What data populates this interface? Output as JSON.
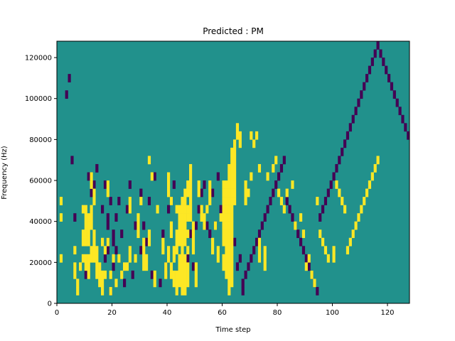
{
  "chart_data": {
    "type": "heatmap",
    "title": "Predicted : PM",
    "xlabel": "Time step",
    "ylabel": "Frequency (Hz)",
    "xlim": [
      0,
      128
    ],
    "ylim": [
      0,
      128000
    ],
    "x_ticks": [
      0,
      20,
      40,
      60,
      80,
      100,
      120
    ],
    "y_ticks": [
      0,
      20000,
      40000,
      60000,
      80000,
      100000,
      120000
    ],
    "x_tick_labels": [
      "0",
      "20",
      "40",
      "60",
      "80",
      "100",
      "120"
    ],
    "y_tick_labels": [
      "0",
      "20000",
      "40000",
      "60000",
      "80000",
      "100000",
      "120000"
    ],
    "grid": false,
    "legend": "none",
    "n_time_steps": 128,
    "n_freq_bins": 32,
    "colormap": {
      "neutral": "#21918c",
      "positive": "#fde725",
      "negative": "#440154"
    },
    "values_legend": {
      "neutral": 0,
      "positive": 1,
      "negative": -1
    },
    "high_cells": [
      [
        1,
        12
      ],
      [
        1,
        10
      ],
      [
        1,
        5
      ],
      [
        6,
        6
      ],
      [
        6,
        4
      ],
      [
        6,
        3
      ],
      [
        7,
        2
      ],
      [
        7,
        1
      ],
      [
        8,
        4
      ],
      [
        9,
        5
      ],
      [
        9,
        7
      ],
      [
        9,
        8
      ],
      [
        9,
        11
      ],
      [
        10,
        4
      ],
      [
        10,
        5
      ],
      [
        10,
        7
      ],
      [
        10,
        8
      ],
      [
        10,
        9
      ],
      [
        10,
        10
      ],
      [
        10,
        11
      ],
      [
        11,
        3
      ],
      [
        11,
        4
      ],
      [
        11,
        5
      ],
      [
        11,
        7
      ],
      [
        11,
        8
      ],
      [
        11,
        9
      ],
      [
        11,
        10
      ],
      [
        12,
        5
      ],
      [
        12,
        6
      ],
      [
        12,
        9
      ],
      [
        12,
        10
      ],
      [
        12,
        11
      ],
      [
        12,
        14
      ],
      [
        12,
        15
      ],
      [
        13,
        5
      ],
      [
        13,
        6
      ],
      [
        13,
        7
      ],
      [
        13,
        8
      ],
      [
        13,
        12
      ],
      [
        13,
        13
      ],
      [
        14,
        3
      ],
      [
        14,
        4
      ],
      [
        14,
        5
      ],
      [
        14,
        6
      ],
      [
        15,
        2
      ],
      [
        15,
        3
      ],
      [
        15,
        4
      ],
      [
        16,
        1
      ],
      [
        16,
        2
      ],
      [
        16,
        3
      ],
      [
        16,
        7
      ],
      [
        17,
        3
      ],
      [
        17,
        6
      ],
      [
        18,
        7
      ],
      [
        18,
        13
      ],
      [
        18,
        14
      ],
      [
        19,
        1
      ],
      [
        19,
        3
      ],
      [
        20,
        5
      ],
      [
        21,
        2
      ],
      [
        22,
        5
      ],
      [
        23,
        3
      ],
      [
        24,
        4
      ],
      [
        25,
        4
      ],
      [
        26,
        11
      ],
      [
        26,
        12
      ],
      [
        26,
        5
      ],
      [
        26,
        6
      ],
      [
        28,
        5
      ],
      [
        29,
        8
      ],
      [
        29,
        9
      ],
      [
        29,
        10
      ],
      [
        30,
        12
      ],
      [
        31,
        7
      ],
      [
        31,
        4
      ],
      [
        31,
        5
      ],
      [
        31,
        6
      ],
      [
        32,
        4
      ],
      [
        32,
        5
      ],
      [
        33,
        7
      ],
      [
        33,
        8
      ],
      [
        33,
        17
      ],
      [
        34,
        15
      ],
      [
        35,
        2
      ],
      [
        35,
        3
      ],
      [
        36,
        11
      ],
      [
        38,
        7
      ],
      [
        38,
        6
      ],
      [
        39,
        3
      ],
      [
        39,
        4
      ],
      [
        40,
        13
      ],
      [
        40,
        14
      ],
      [
        40,
        15
      ],
      [
        40,
        5
      ],
      [
        40,
        6
      ],
      [
        41,
        3
      ],
      [
        41,
        4
      ],
      [
        41,
        8
      ],
      [
        41,
        9
      ],
      [
        41,
        12
      ],
      [
        42,
        6
      ],
      [
        42,
        5
      ],
      [
        42,
        2
      ],
      [
        42,
        3
      ],
      [
        43,
        1
      ],
      [
        43,
        2
      ],
      [
        43,
        3
      ],
      [
        43,
        6
      ],
      [
        43,
        7
      ],
      [
        43,
        8
      ],
      [
        43,
        11
      ],
      [
        44,
        2
      ],
      [
        44,
        3
      ],
      [
        44,
        4
      ],
      [
        44,
        5
      ],
      [
        44,
        7
      ],
      [
        44,
        8
      ],
      [
        44,
        9
      ],
      [
        44,
        10
      ],
      [
        44,
        11
      ],
      [
        45,
        1
      ],
      [
        45,
        2
      ],
      [
        45,
        3
      ],
      [
        45,
        4
      ],
      [
        45,
        5
      ],
      [
        45,
        6
      ],
      [
        45,
        7
      ],
      [
        45,
        8
      ],
      [
        45,
        9
      ],
      [
        45,
        10
      ],
      [
        45,
        11
      ],
      [
        45,
        12
      ],
      [
        46,
        1
      ],
      [
        46,
        2
      ],
      [
        46,
        3
      ],
      [
        46,
        4
      ],
      [
        46,
        5
      ],
      [
        46,
        7
      ],
      [
        46,
        8
      ],
      [
        46,
        9
      ],
      [
        46,
        10
      ],
      [
        46,
        11
      ],
      [
        46,
        12
      ],
      [
        46,
        13
      ],
      [
        47,
        2
      ],
      [
        47,
        3
      ],
      [
        47,
        4
      ],
      [
        47,
        6
      ],
      [
        47,
        8
      ],
      [
        47,
        10
      ],
      [
        47,
        11
      ],
      [
        47,
        13
      ],
      [
        47,
        14
      ],
      [
        48,
        10
      ],
      [
        48,
        11
      ],
      [
        48,
        12
      ],
      [
        48,
        13
      ],
      [
        48,
        14
      ],
      [
        48,
        15
      ],
      [
        48,
        16
      ],
      [
        49,
        6
      ],
      [
        49,
        7
      ],
      [
        49,
        8
      ],
      [
        49,
        9
      ],
      [
        50,
        2
      ],
      [
        50,
        3
      ],
      [
        50,
        4
      ],
      [
        51,
        13
      ],
      [
        51,
        14
      ],
      [
        52,
        10
      ],
      [
        52,
        11
      ],
      [
        53,
        9
      ],
      [
        53,
        10
      ],
      [
        54,
        11
      ],
      [
        55,
        12
      ],
      [
        55,
        13
      ],
      [
        55,
        14
      ],
      [
        56,
        6
      ],
      [
        56,
        7
      ],
      [
        57,
        9
      ],
      [
        58,
        5
      ],
      [
        58,
        6
      ],
      [
        59,
        10
      ],
      [
        60,
        4
      ],
      [
        60,
        5
      ],
      [
        60,
        7
      ],
      [
        60,
        8
      ],
      [
        60,
        9
      ],
      [
        60,
        10
      ],
      [
        60,
        11
      ],
      [
        60,
        12
      ],
      [
        60,
        13
      ],
      [
        60,
        14
      ],
      [
        61,
        3
      ],
      [
        61,
        4
      ],
      [
        61,
        5
      ],
      [
        61,
        6
      ],
      [
        61,
        7
      ],
      [
        61,
        8
      ],
      [
        61,
        9
      ],
      [
        61,
        10
      ],
      [
        61,
        11
      ],
      [
        61,
        12
      ],
      [
        61,
        13
      ],
      [
        61,
        14
      ],
      [
        62,
        1
      ],
      [
        62,
        2
      ],
      [
        62,
        3
      ],
      [
        62,
        4
      ],
      [
        62,
        5
      ],
      [
        62,
        6
      ],
      [
        62,
        7
      ],
      [
        62,
        8
      ],
      [
        62,
        9
      ],
      [
        62,
        10
      ],
      [
        62,
        11
      ],
      [
        62,
        12
      ],
      [
        62,
        13
      ],
      [
        62,
        14
      ],
      [
        62,
        15
      ],
      [
        62,
        16
      ],
      [
        63,
        2
      ],
      [
        63,
        3
      ],
      [
        63,
        4
      ],
      [
        63,
        5
      ],
      [
        63,
        6
      ],
      [
        63,
        7
      ],
      [
        63,
        8
      ],
      [
        63,
        9
      ],
      [
        63,
        10
      ],
      [
        63,
        11
      ],
      [
        63,
        12
      ],
      [
        63,
        13
      ],
      [
        63,
        14
      ],
      [
        63,
        15
      ],
      [
        63,
        16
      ],
      [
        63,
        17
      ],
      [
        63,
        18
      ],
      [
        64,
        12
      ],
      [
        64,
        13
      ],
      [
        64,
        14
      ],
      [
        64,
        15
      ],
      [
        64,
        16
      ],
      [
        64,
        17
      ],
      [
        64,
        18
      ],
      [
        64,
        19
      ],
      [
        65,
        20
      ],
      [
        65,
        21
      ],
      [
        66,
        20
      ],
      [
        66,
        19
      ],
      [
        68,
        12
      ],
      [
        68,
        13
      ],
      [
        68,
        14
      ],
      [
        69,
        13
      ],
      [
        70,
        15
      ],
      [
        70,
        20
      ],
      [
        71,
        19
      ],
      [
        72,
        20
      ],
      [
        73,
        5
      ],
      [
        73,
        6
      ],
      [
        73,
        7
      ],
      [
        73,
        16
      ],
      [
        75,
        4
      ],
      [
        75,
        5
      ],
      [
        75,
        6
      ],
      [
        76,
        15
      ],
      [
        78,
        16
      ],
      [
        79,
        17
      ],
      [
        80,
        13
      ],
      [
        81,
        12
      ],
      [
        82,
        11
      ],
      [
        83,
        13
      ],
      [
        85,
        14
      ],
      [
        86,
        9
      ],
      [
        88,
        10
      ],
      [
        89,
        8
      ],
      [
        90,
        4
      ],
      [
        91,
        5
      ],
      [
        92,
        3
      ],
      [
        93,
        2
      ],
      [
        94,
        12
      ],
      [
        95,
        8
      ],
      [
        96,
        7
      ],
      [
        97,
        6
      ],
      [
        98,
        5
      ],
      [
        100,
        5
      ],
      [
        100,
        6
      ],
      [
        101,
        14
      ],
      [
        102,
        13
      ],
      [
        103,
        12
      ],
      [
        104,
        11
      ],
      [
        105,
        6
      ],
      [
        106,
        7
      ],
      [
        107,
        8
      ],
      [
        108,
        9
      ],
      [
        109,
        10
      ],
      [
        110,
        11
      ],
      [
        111,
        12
      ],
      [
        112,
        13
      ],
      [
        113,
        14
      ],
      [
        114,
        15
      ],
      [
        115,
        16
      ],
      [
        116,
        17
      ]
    ],
    "low_cells": [
      [
        3,
        25
      ],
      [
        4,
        27
      ],
      [
        5,
        17
      ],
      [
        6,
        10
      ],
      [
        10,
        3
      ],
      [
        11,
        15
      ],
      [
        12,
        13
      ],
      [
        13,
        14
      ],
      [
        14,
        16
      ],
      [
        16,
        11
      ],
      [
        17,
        5
      ],
      [
        17,
        14
      ],
      [
        18,
        6
      ],
      [
        18,
        7
      ],
      [
        18,
        9
      ],
      [
        18,
        10
      ],
      [
        19,
        1
      ],
      [
        19,
        12
      ],
      [
        20,
        4
      ],
      [
        20,
        7
      ],
      [
        20,
        8
      ],
      [
        21,
        6
      ],
      [
        21,
        10
      ],
      [
        22,
        12
      ],
      [
        23,
        8
      ],
      [
        24,
        2
      ],
      [
        25,
        11
      ],
      [
        26,
        14
      ],
      [
        27,
        3
      ],
      [
        28,
        9
      ],
      [
        30,
        6
      ],
      [
        30,
        13
      ],
      [
        31,
        9
      ],
      [
        32,
        7
      ],
      [
        33,
        12
      ],
      [
        34,
        3
      ],
      [
        35,
        15
      ],
      [
        37,
        2
      ],
      [
        38,
        8
      ],
      [
        39,
        4
      ],
      [
        40,
        11
      ],
      [
        41,
        12
      ],
      [
        42,
        14
      ],
      [
        43,
        3
      ],
      [
        44,
        8
      ],
      [
        45,
        11
      ],
      [
        46,
        7
      ],
      [
        46,
        10
      ],
      [
        47,
        5
      ],
      [
        48,
        8
      ],
      [
        49,
        4
      ],
      [
        50,
        9
      ],
      [
        51,
        11
      ],
      [
        52,
        13
      ],
      [
        53,
        14
      ],
      [
        54,
        9
      ],
      [
        55,
        8
      ],
      [
        56,
        13
      ],
      [
        57,
        9
      ],
      [
        58,
        15
      ],
      [
        59,
        11
      ],
      [
        60,
        13
      ],
      [
        61,
        7
      ],
      [
        64,
        7
      ],
      [
        65,
        4
      ],
      [
        66,
        5
      ],
      [
        67,
        1
      ],
      [
        67,
        2
      ],
      [
        68,
        3
      ],
      [
        69,
        4
      ],
      [
        70,
        5
      ],
      [
        71,
        6
      ],
      [
        72,
        7
      ],
      [
        73,
        8
      ],
      [
        74,
        9
      ],
      [
        75,
        10
      ],
      [
        76,
        11
      ],
      [
        77,
        12
      ],
      [
        78,
        13
      ],
      [
        79,
        14
      ],
      [
        80,
        15
      ],
      [
        81,
        16
      ],
      [
        82,
        17
      ],
      [
        83,
        12
      ],
      [
        84,
        11
      ],
      [
        85,
        10
      ],
      [
        86,
        9
      ],
      [
        87,
        8
      ],
      [
        88,
        7
      ],
      [
        89,
        6
      ],
      [
        90,
        5
      ],
      [
        91,
        4
      ],
      [
        92,
        3
      ],
      [
        93,
        2
      ],
      [
        94,
        1
      ],
      [
        95,
        10
      ],
      [
        96,
        11
      ],
      [
        97,
        12
      ],
      [
        98,
        13
      ],
      [
        99,
        14
      ],
      [
        100,
        15
      ],
      [
        101,
        16
      ],
      [
        102,
        17
      ],
      [
        103,
        18
      ],
      [
        104,
        19
      ],
      [
        105,
        20
      ],
      [
        106,
        21
      ],
      [
        107,
        22
      ],
      [
        108,
        23
      ],
      [
        109,
        24
      ],
      [
        110,
        25
      ],
      [
        111,
        26
      ],
      [
        112,
        27
      ],
      [
        113,
        28
      ],
      [
        114,
        29
      ],
      [
        115,
        30
      ],
      [
        116,
        31
      ],
      [
        117,
        30
      ],
      [
        118,
        29
      ],
      [
        119,
        28
      ],
      [
        120,
        27
      ],
      [
        121,
        26
      ],
      [
        122,
        25
      ],
      [
        123,
        24
      ],
      [
        124,
        23
      ],
      [
        125,
        22
      ],
      [
        126,
        21
      ],
      [
        127,
        20
      ]
    ]
  }
}
